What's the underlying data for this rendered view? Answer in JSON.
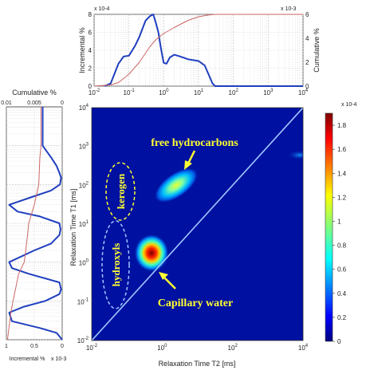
{
  "chart_data": [
    {
      "type": "line",
      "x_scale": "log",
      "xlim": [
        0.01,
        10000
      ],
      "ylim": [
        0,
        8
      ],
      "y2lim": [
        0,
        6
      ],
      "x_ticks": [
        0.01,
        0.1,
        1,
        10,
        100,
        1000,
        10000
      ],
      "y_ticks": [
        0,
        2,
        4,
        6,
        8
      ],
      "y2_ticks": [
        0,
        2,
        4,
        6
      ],
      "y_exponent": "x 10-4",
      "y2_exponent": "x 10-3",
      "ylabel": "Incremental %",
      "y2label": "Cumulative %",
      "grid": true,
      "series": [
        {
          "color": "#1f3fbf",
          "x": [
            0.02,
            0.03,
            0.05,
            0.07,
            0.1,
            0.15,
            0.2,
            0.3,
            0.4,
            0.5,
            0.6,
            0.7,
            0.8,
            0.9,
            1.0,
            1.2,
            1.5,
            2.0,
            3.0,
            5.0,
            7.0,
            10,
            15,
            20,
            25,
            30,
            10000
          ],
          "values": [
            0,
            0.3,
            2.5,
            3.3,
            3.4,
            4.5,
            5.5,
            7.3,
            7.8,
            8.0,
            7.0,
            6.0,
            4.6,
            3.5,
            2.6,
            2.5,
            3.2,
            3.5,
            3.3,
            3.0,
            2.9,
            2.8,
            2.3,
            1.2,
            0.3,
            0,
            0
          ]
        },
        {
          "color": "#cc6666",
          "axis": "y2",
          "x": [
            0.01,
            0.03,
            0.05,
            0.1,
            0.2,
            0.4,
            0.6,
            1.0,
            2.0,
            5.0,
            10,
            20,
            30,
            10000
          ],
          "values": [
            0,
            0.1,
            0.3,
            1.0,
            2.0,
            3.3,
            3.9,
            4.4,
            4.9,
            5.5,
            5.8,
            5.95,
            6.0,
            6.0
          ]
        }
      ]
    },
    {
      "type": "line",
      "orientation": "vertical",
      "x_scale": "log",
      "xlim": [
        0.01,
        10000
      ],
      "incremental_lim": [
        0,
        1
      ],
      "cumulative_lim": [
        0,
        0.01
      ],
      "incremental_ticks": [
        0,
        0.5,
        1
      ],
      "cumulative_ticks": [
        0,
        0.005,
        0.01
      ],
      "incremental_exponent": "x 10-3",
      "top_label": "Cumulative %",
      "bottom_label": "Incremental %",
      "grid": true,
      "series": [
        {
          "color": "#1f3fbf",
          "x": [
            0.01,
            0.015,
            0.02,
            0.03,
            0.05,
            0.07,
            0.1,
            0.15,
            0.2,
            0.3,
            0.5,
            0.7,
            1.0,
            2.0,
            3.0,
            5.0,
            7.0,
            10,
            15,
            20,
            30,
            50,
            70,
            100,
            150,
            200,
            300,
            500,
            1000,
            10000
          ],
          "values": [
            0,
            0.1,
            0.4,
            0.9,
            0.95,
            0.7,
            0.3,
            0.05,
            0.02,
            0.05,
            0.6,
            0.9,
            0.95,
            0.5,
            0.2,
            0.05,
            0.03,
            0.05,
            0.4,
            0.8,
            0.95,
            0.5,
            0.2,
            0.04,
            0.02,
            0.05,
            0.1,
            0.2,
            0.35,
            0.35
          ]
        },
        {
          "color": "#cc6666",
          "axis": "cumulative",
          "x": [
            0.01,
            0.05,
            0.1,
            0.5,
            1,
            5,
            10,
            30,
            100,
            500,
            1000,
            10000
          ],
          "values": [
            0.0098,
            0.0092,
            0.0088,
            0.0078,
            0.0068,
            0.0062,
            0.006,
            0.005,
            0.0042,
            0.004,
            0.0038,
            0.0038
          ]
        }
      ]
    },
    {
      "type": "heatmap",
      "x_scale": "log",
      "y_scale": "log",
      "xlim": [
        0.01,
        10000
      ],
      "ylim": [
        0.01,
        10000
      ],
      "x_ticks": [
        0.01,
        1,
        100,
        10000
      ],
      "y_ticks": [
        0.01,
        0.1,
        1,
        10,
        100,
        1000,
        10000
      ],
      "xlabel": "Relaxation Time T2 [ms]",
      "ylabel": "Relaxation Time T1 [ms]",
      "colorbar": {
        "min": 0,
        "max": 1.9,
        "ticks": [
          0,
          0.2,
          0.4,
          0.6,
          0.8,
          1,
          1.2,
          1.4,
          1.6,
          1.8
        ],
        "exponent": "x 10-4"
      },
      "peaks": [
        {
          "t2": 0.5,
          "t1": 1.8,
          "amplitude": 1.9
        },
        {
          "t2": 2.5,
          "t1": 100,
          "amplitude": 1.2
        },
        {
          "t2": 8000,
          "t1": 600,
          "amplitude": 0.25
        }
      ],
      "diagonal": "T1 = T2",
      "annotations": [
        "free hydrocarbons",
        "kerogen",
        "hydroxyls",
        "Capillary water"
      ]
    }
  ]
}
